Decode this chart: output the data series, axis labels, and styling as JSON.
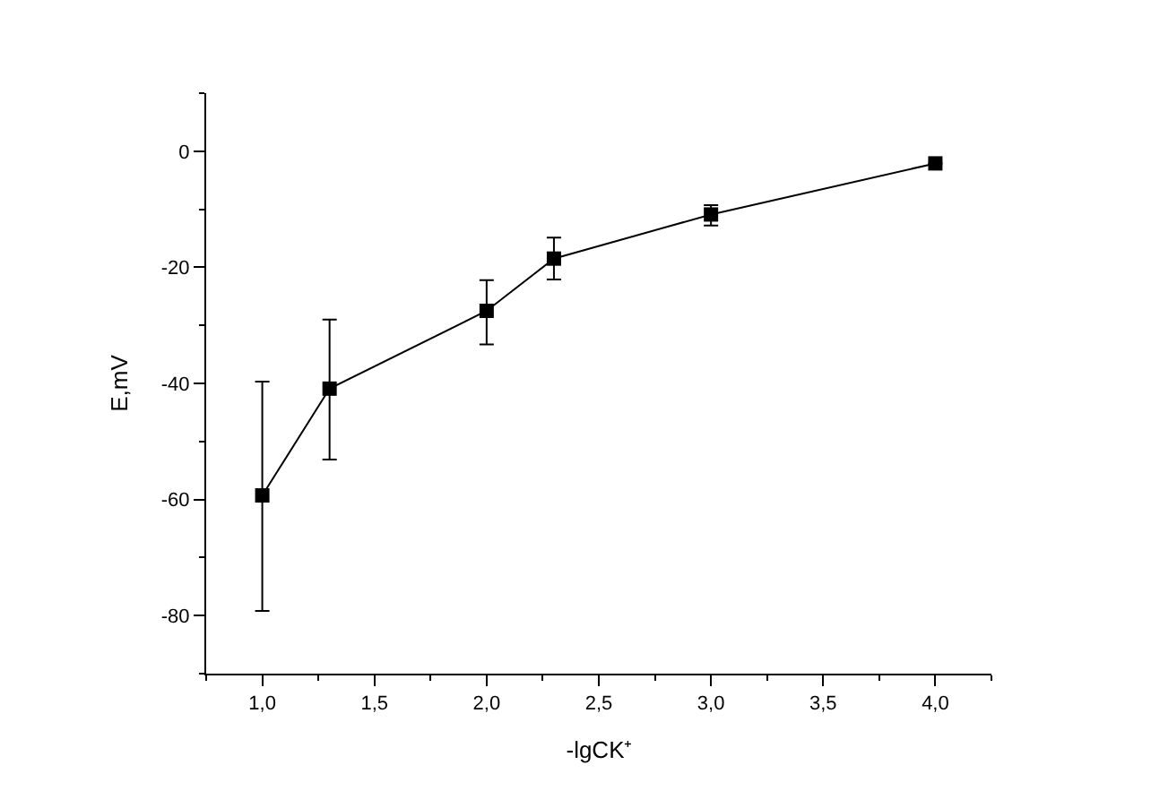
{
  "chart_data": {
    "type": "line",
    "xlabel": "-lgCK⁺",
    "ylabel": "E,mV",
    "x": [
      1.0,
      1.3,
      2.0,
      2.3,
      3.0,
      4.0
    ],
    "series": [
      {
        "color": "#000000",
        "values": [
          -59.3,
          -40.9,
          -27.5,
          -18.5,
          -10.9,
          -2.1
        ],
        "errors": [
          [
            -79.2,
            -39.7
          ],
          [
            -53.1,
            -29.0
          ],
          [
            -33.3,
            -22.2
          ],
          [
            -22.1,
            -14.9
          ],
          [
            -12.8,
            -9.3
          ],
          null
        ]
      }
    ],
    "xlim": [
      0.75,
      4.25
    ],
    "xticks": [
      {
        "value": 1.0,
        "label": "1,0"
      },
      {
        "value": 1.5,
        "label": "1,5"
      },
      {
        "value": 2.0,
        "label": "2,0"
      },
      {
        "value": 2.5,
        "label": "2,5"
      },
      {
        "value": 3.0,
        "label": "3,0"
      },
      {
        "value": 3.5,
        "label": "3,5"
      },
      {
        "value": 4.0,
        "label": "4,0"
      }
    ],
    "ylim": [
      -90,
      10
    ],
    "yticks": [
      -80,
      -60,
      -40,
      -20,
      0
    ],
    "legend": false,
    "marker": "square",
    "line_style": "solid"
  }
}
